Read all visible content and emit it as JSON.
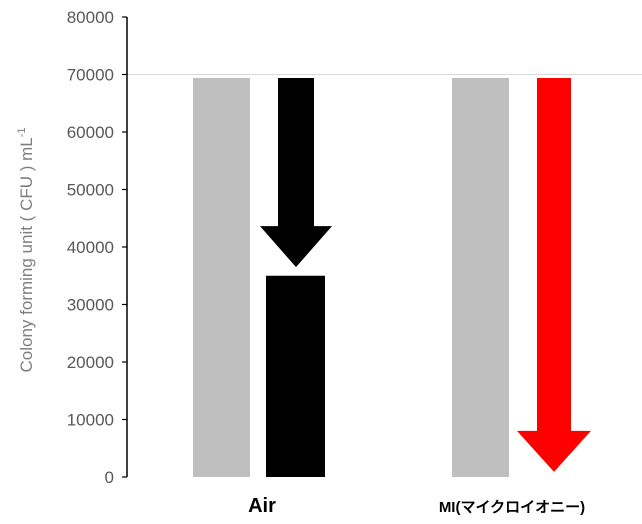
{
  "chart_data": {
    "type": "bar",
    "ylabel_main": "Colony forming unit ( CFU ) mL",
    "ylabel_sup": "-1",
    "ylim": [
      0,
      80000
    ],
    "yticks": [
      {
        "value": 0,
        "label": "0"
      },
      {
        "value": 10000,
        "label": "10000"
      },
      {
        "value": 20000,
        "label": "20000"
      },
      {
        "value": 30000,
        "label": "30000"
      },
      {
        "value": 40000,
        "label": "40000"
      },
      {
        "value": 50000,
        "label": "50000"
      },
      {
        "value": 60000,
        "label": "60000"
      },
      {
        "value": 70000,
        "label": "70000"
      },
      {
        "value": 80000,
        "label": "80000"
      }
    ],
    "grid": "horizontal at 70000 only",
    "categories": [
      {
        "label": "Air",
        "before": 69400,
        "after": 35000,
        "arrow_from": 69400,
        "arrow_to": 36500
      },
      {
        "label": "MI(マイクロイオニー)",
        "before": 69400,
        "after": 0,
        "arrow_from": 69400,
        "arrow_to": 900
      }
    ],
    "colors": {
      "before": "#bfbfbf",
      "air_after": "#000000",
      "mi_arrow": "#ff0000",
      "axis": "#000000",
      "gridline": "#d9d9d9"
    }
  }
}
